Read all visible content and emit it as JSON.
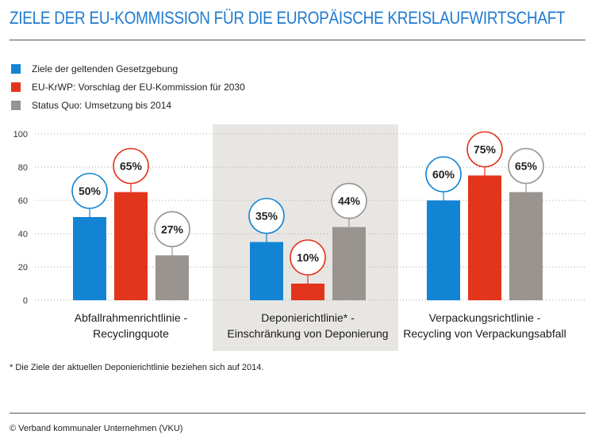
{
  "title": "ZIELE DER EU-KOMMISSION FÜR DIE EUROPÄISCHE KREISLAUFWIRTSCHAFT",
  "footnote": "* Die Ziele der aktuellen Deponierichtlinie beziehen sich auf 2014.",
  "credit": "© Verband kommunaler Unternehmen (VKU)",
  "chart_data": {
    "type": "bar",
    "title": "ZIELE DER EU-KOMMISSION FÜR DIE EUROPÄISCHE KREISLAUFWIRTSCHAFT",
    "xlabel": "",
    "ylabel": "",
    "ylim": [
      0,
      100
    ],
    "yticks": [
      0,
      20,
      40,
      60,
      80,
      100
    ],
    "grid": false,
    "legend_position": "top-left",
    "categories": [
      [
        "Abfallrahmenrichtlinie -",
        "Recyclingquote"
      ],
      [
        "Deponierichtlinie* -",
        "Einschränkung von Deponierung"
      ],
      [
        "Verpackungsrichtlinie -",
        "Recycling von Verpackungsabfall"
      ]
    ],
    "highlighted_category": 1,
    "series": [
      {
        "name": "Ziele der geltenden Gesetzgebung",
        "color": "#1384d4",
        "values": [
          50,
          35,
          60
        ]
      },
      {
        "name": "EU-KrWP: Vorschlag der EU-Kommission für 2030",
        "color": "#e3341c",
        "values": [
          65,
          10,
          75
        ]
      },
      {
        "name": "Status Quo: Umsetzung bis 2014",
        "color": "#999490",
        "values": [
          27,
          44,
          65
        ]
      }
    ],
    "data_labels": [
      [
        "50%",
        "35%",
        "60%"
      ],
      [
        "65%",
        "10%",
        "75%"
      ],
      [
        "27%",
        "44%",
        "65%"
      ]
    ]
  }
}
